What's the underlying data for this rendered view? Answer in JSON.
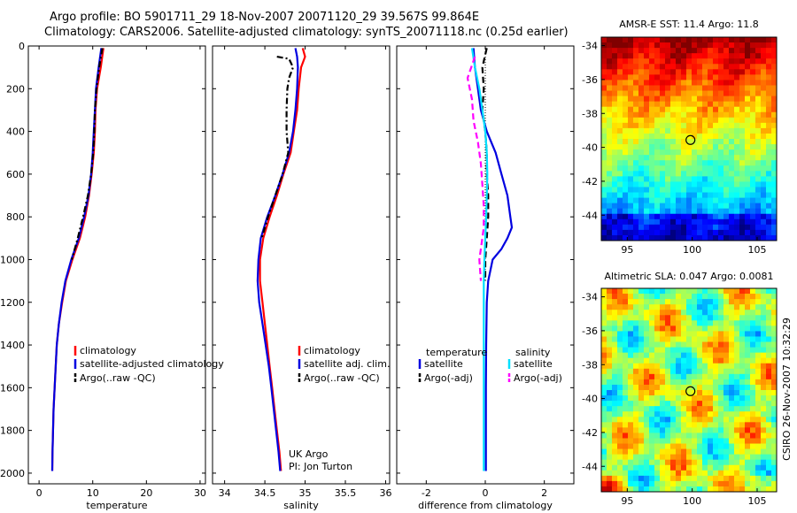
{
  "header": {
    "title_line1": "Argo profile: BO 5901711_29 18-Nov-2007 20071120_29 39.567S 99.864E",
    "title_line2": "Climatology: CARS2006. Satellite-adjusted climatology: synTS_20071118.nc (0.25d earlier)"
  },
  "footer_stamp": "CSIRO 26-Nov-2007 10:32:29",
  "colors": {
    "climatology": "#ff0000",
    "satellite": "#0000e0",
    "argo": "#000000",
    "salinity_satellite": "#00e0ff",
    "salinity_argo": "#ff00ff"
  },
  "chart_data": [
    {
      "type": "line",
      "name": "temperature_profile",
      "xlabel": "temperature",
      "ylabel": "",
      "xlim": [
        -2,
        31
      ],
      "ylim": [
        2050,
        0
      ],
      "xticks": [
        0,
        10,
        20,
        30
      ],
      "yticks": [
        0,
        200,
        400,
        600,
        800,
        1000,
        1200,
        1400,
        1600,
        1800,
        2000
      ],
      "legend": [
        "climatology",
        "satellite-adjusted climatology",
        "Argo(..raw -QC)"
      ],
      "legend_placement": "lower-right",
      "series": [
        {
          "name": "climatology",
          "color": "#ff0000",
          "style": "solid",
          "points": [
            [
              12.0,
              10
            ],
            [
              11.5,
              100
            ],
            [
              10.8,
              200
            ],
            [
              10.5,
              300
            ],
            [
              10.4,
              400
            ],
            [
              10.2,
              500
            ],
            [
              9.8,
              600
            ],
            [
              9.3,
              700
            ],
            [
              8.6,
              800
            ],
            [
              7.6,
              900
            ],
            [
              6.2,
              1000
            ],
            [
              5.0,
              1100
            ],
            [
              4.3,
              1200
            ],
            [
              3.7,
              1300
            ],
            [
              3.3,
              1400
            ],
            [
              3.1,
              1500
            ],
            [
              2.9,
              1600
            ],
            [
              2.7,
              1700
            ],
            [
              2.6,
              1800
            ],
            [
              2.5,
              1900
            ],
            [
              2.45,
              1990
            ]
          ]
        },
        {
          "name": "satellite-adjusted climatology",
          "color": "#0000e0",
          "style": "solid",
          "points": [
            [
              11.6,
              10
            ],
            [
              11.1,
              100
            ],
            [
              10.6,
              200
            ],
            [
              10.4,
              300
            ],
            [
              10.2,
              400
            ],
            [
              10.0,
              500
            ],
            [
              9.7,
              600
            ],
            [
              9.2,
              700
            ],
            [
              8.4,
              800
            ],
            [
              7.4,
              900
            ],
            [
              6.0,
              1000
            ],
            [
              4.9,
              1100
            ],
            [
              4.2,
              1200
            ],
            [
              3.7,
              1300
            ],
            [
              3.3,
              1400
            ],
            [
              3.1,
              1500
            ],
            [
              2.9,
              1600
            ],
            [
              2.7,
              1700
            ],
            [
              2.6,
              1800
            ],
            [
              2.5,
              1900
            ],
            [
              2.45,
              1990
            ]
          ]
        },
        {
          "name": "Argo(..raw -QC)",
          "color": "#000000",
          "style": "dashdot",
          "points": [
            [
              11.8,
              10
            ],
            [
              11.2,
              100
            ],
            [
              10.7,
              200
            ],
            [
              10.4,
              300
            ],
            [
              10.3,
              400
            ],
            [
              10.1,
              500
            ],
            [
              9.7,
              600
            ],
            [
              9.1,
              700
            ],
            [
              8.2,
              800
            ],
            [
              7.2,
              900
            ],
            [
              6.1,
              1000
            ]
          ]
        }
      ]
    },
    {
      "type": "line",
      "name": "salinity_profile",
      "xlabel": "salinity",
      "ylabel": "",
      "xlim": [
        33.85,
        36.05
      ],
      "ylim": [
        2050,
        0
      ],
      "xticks": [
        34,
        34.5,
        35,
        35.5,
        36
      ],
      "legend": [
        "climatology",
        "satellite adj. clim.",
        "Argo(..raw -QC)"
      ],
      "legend_placement": "lower-right",
      "annotation": [
        "UK Argo",
        "PI: Jon Turton"
      ],
      "series": [
        {
          "name": "climatology",
          "color": "#ff0000",
          "style": "solid",
          "points": [
            [
              34.97,
              10
            ],
            [
              35.0,
              50
            ],
            [
              34.95,
              100
            ],
            [
              34.92,
              200
            ],
            [
              34.9,
              300
            ],
            [
              34.86,
              400
            ],
            [
              34.82,
              500
            ],
            [
              34.73,
              600
            ],
            [
              34.65,
              700
            ],
            [
              34.56,
              800
            ],
            [
              34.48,
              900
            ],
            [
              34.44,
              1000
            ],
            [
              34.44,
              1100
            ],
            [
              34.47,
              1200
            ],
            [
              34.5,
              1300
            ],
            [
              34.53,
              1400
            ],
            [
              34.56,
              1500
            ],
            [
              34.59,
              1600
            ],
            [
              34.62,
              1700
            ],
            [
              34.65,
              1800
            ],
            [
              34.68,
              1900
            ],
            [
              34.7,
              1990
            ]
          ]
        },
        {
          "name": "satellite adj. clim.",
          "color": "#0000e0",
          "style": "solid",
          "points": [
            [
              34.88,
              10
            ],
            [
              34.9,
              50
            ],
            [
              34.91,
              100
            ],
            [
              34.9,
              200
            ],
            [
              34.88,
              300
            ],
            [
              34.85,
              400
            ],
            [
              34.8,
              500
            ],
            [
              34.72,
              600
            ],
            [
              34.63,
              700
            ],
            [
              34.53,
              800
            ],
            [
              34.45,
              900
            ],
            [
              34.42,
              1000
            ],
            [
              34.41,
              1100
            ],
            [
              34.43,
              1200
            ],
            [
              34.47,
              1300
            ],
            [
              34.51,
              1400
            ],
            [
              34.55,
              1500
            ],
            [
              34.58,
              1600
            ],
            [
              34.61,
              1700
            ],
            [
              34.64,
              1800
            ],
            [
              34.67,
              1900
            ],
            [
              34.69,
              1990
            ]
          ]
        },
        {
          "name": "Argo(..raw -QC)",
          "color": "#000000",
          "style": "dashdot",
          "points": [
            [
              34.65,
              50
            ],
            [
              34.8,
              60
            ],
            [
              34.85,
              100
            ],
            [
              34.8,
              150
            ],
            [
              34.78,
              200
            ],
            [
              34.77,
              300
            ],
            [
              34.77,
              400
            ],
            [
              34.79,
              500
            ],
            [
              34.72,
              600
            ],
            [
              34.63,
              700
            ],
            [
              34.54,
              800
            ],
            [
              34.46,
              900
            ]
          ]
        }
      ]
    },
    {
      "type": "line",
      "name": "difference_profile",
      "xlabel": "difference from climatology",
      "ylabel": "",
      "xlim": [
        -3,
        3
      ],
      "ylim": [
        2050,
        0
      ],
      "xticks": [
        -2,
        0,
        2
      ],
      "legend": [
        "temperature",
        "satellite",
        "Argo(-adj)",
        "salinity",
        "satellite",
        "Argo(-adj)"
      ],
      "legend_placement": "lower-center",
      "series": [
        {
          "name": "temperature satellite",
          "color": "#0000e0",
          "style": "solid",
          "points": [
            [
              -0.4,
              10
            ],
            [
              -0.35,
              100
            ],
            [
              -0.25,
              200
            ],
            [
              -0.15,
              300
            ],
            [
              0.05,
              400
            ],
            [
              0.35,
              500
            ],
            [
              0.55,
              600
            ],
            [
              0.75,
              700
            ],
            [
              0.85,
              800
            ],
            [
              0.9,
              850
            ],
            [
              0.75,
              900
            ],
            [
              0.55,
              950
            ],
            [
              0.25,
              1000
            ],
            [
              0.1,
              1100
            ],
            [
              0.05,
              1200
            ],
            [
              0.03,
              1400
            ],
            [
              0.02,
              1600
            ],
            [
              0.02,
              1800
            ],
            [
              0.02,
              1990
            ]
          ]
        },
        {
          "name": "temperature Argo(-adj)",
          "color": "#000000",
          "style": "dashed",
          "points": [
            [
              0.05,
              10
            ],
            [
              -0.1,
              100
            ],
            [
              -0.05,
              200
            ],
            [
              -0.1,
              300
            ],
            [
              0.0,
              400
            ],
            [
              0.05,
              500
            ],
            [
              0.05,
              600
            ],
            [
              0.1,
              700
            ],
            [
              0.1,
              800
            ],
            [
              0.05,
              900
            ],
            [
              0.0,
              1000
            ],
            [
              0.0,
              1100
            ]
          ]
        },
        {
          "name": "salinity satellite",
          "color": "#00e0ff",
          "style": "solid",
          "points": [
            [
              -0.45,
              10
            ],
            [
              -0.35,
              100
            ],
            [
              -0.2,
              200
            ],
            [
              -0.1,
              300
            ],
            [
              0.0,
              400
            ],
            [
              0.05,
              500
            ],
            [
              0.07,
              600
            ],
            [
              0.05,
              700
            ],
            [
              0.03,
              800
            ],
            [
              0.0,
              900
            ],
            [
              -0.03,
              1000
            ],
            [
              -0.05,
              1100
            ],
            [
              -0.05,
              1200
            ],
            [
              -0.05,
              1400
            ],
            [
              -0.05,
              1600
            ],
            [
              -0.05,
              1800
            ],
            [
              -0.05,
              1990
            ]
          ]
        },
        {
          "name": "salinity Argo(-adj)",
          "color": "#ff00ff",
          "style": "dashed",
          "points": [
            [
              -0.35,
              50
            ],
            [
              -0.6,
              150
            ],
            [
              -0.45,
              250
            ],
            [
              -0.4,
              350
            ],
            [
              -0.25,
              450
            ],
            [
              -0.15,
              550
            ],
            [
              -0.1,
              650
            ],
            [
              -0.05,
              750
            ],
            [
              -0.05,
              850
            ],
            [
              -0.15,
              950
            ],
            [
              -0.2,
              1000
            ],
            [
              -0.15,
              1100
            ]
          ]
        }
      ]
    },
    {
      "type": "heatmap",
      "name": "sst_map",
      "title": "AMSR-E SST: 11.4  Argo: 11.8",
      "xlim": [
        93,
        106.5
      ],
      "ylim": [
        -45.5,
        -33.5
      ],
      "xticks": [
        95,
        100,
        105
      ],
      "yticks": [
        -34,
        -36,
        -38,
        -40,
        -42,
        -44
      ],
      "marker": {
        "lon": 99.864,
        "lat": -39.567
      }
    },
    {
      "type": "heatmap",
      "name": "sla_map",
      "title": "Altimetric SLA: 0.047  Argo: 0.0081",
      "xlim": [
        93,
        106.5
      ],
      "ylim": [
        -45.5,
        -33.5
      ],
      "xticks": [
        95,
        100,
        105
      ],
      "yticks": [
        -34,
        -36,
        -38,
        -40,
        -42,
        -44
      ],
      "marker": {
        "lon": 99.864,
        "lat": -39.567
      }
    }
  ]
}
